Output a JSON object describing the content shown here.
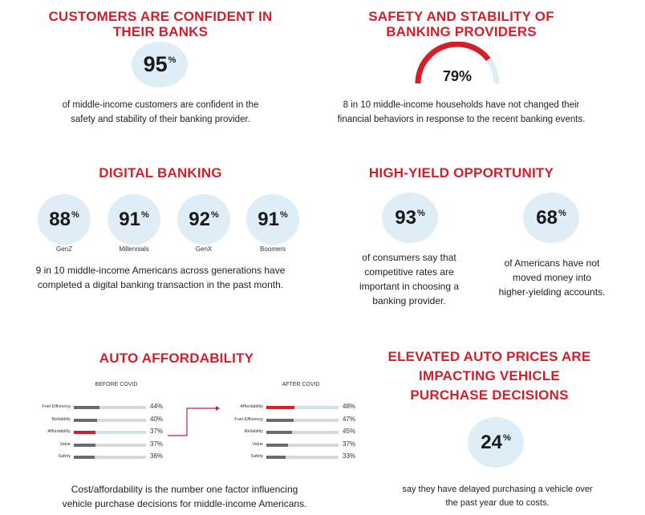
{
  "confidence": {
    "heading_line1": "CUSTOMERS ARE CONFIDENT IN",
    "heading_line2": "THEIR BANKS",
    "value": "95",
    "unit": "%",
    "text_line1": "of middle-income customers are confident in the",
    "text_line2": "safety and stability of their banking provider."
  },
  "safety": {
    "heading_line1": "SAFETY AND STABILITY OF",
    "heading_line2": "BANKING PROVIDERS",
    "gauge_value": 79,
    "gauge_label": "79%",
    "gauge_color": "#d31f2a",
    "gauge_track_color": "#deedf6",
    "text_line1": "8 in 10 middle-income households have not changed their",
    "text_line2": "financial behaviors in response to the recent banking events."
  },
  "digital": {
    "heading": "DIGITAL BANKING",
    "generations": [
      {
        "value": "88",
        "unit": "%",
        "label": "GenZ"
      },
      {
        "value": "91",
        "unit": "%",
        "label": "Millennials"
      },
      {
        "value": "92",
        "unit": "%",
        "label": "GenX"
      },
      {
        "value": "91",
        "unit": "%",
        "label": "Boomers"
      }
    ],
    "text_line1": "9 in 10 middle-income Americans across generations have",
    "text_line2": "completed a digital banking transaction in the past month."
  },
  "high_yield": {
    "heading": "HIGH-YIELD OPPORTUNITY",
    "stats": [
      {
        "value": "93",
        "unit": "%",
        "lines": [
          "of consumers say that",
          "competitive rates are",
          "important in choosing a",
          "banking provider."
        ]
      },
      {
        "value": "68",
        "unit": "%",
        "lines": [
          "of Americans have not",
          "moved money into",
          "higher-yielding accounts."
        ]
      }
    ]
  },
  "auto_affordability": {
    "heading": "AUTO AFFORDABILITY",
    "text_line1": "Cost/affordability is the number one factor influencing",
    "text_line2": "vehicle purchase decisions for middle-income Americans."
  },
  "chart_data": [
    {
      "type": "bar",
      "orientation": "horizontal",
      "title": "BEFORE COVID",
      "categories": [
        "Fuel Efficiency",
        "Reliability",
        "Affordability",
        "Value",
        "Safety"
      ],
      "values": [
        44,
        40,
        37,
        37,
        36
      ],
      "value_labels": [
        "44%",
        "40%",
        "37%",
        "37%",
        "36%"
      ],
      "highlight": "Affordability",
      "highlight_color": "#d31f2a",
      "bar_color": "#6b6b6b",
      "xlim": [
        0,
        100
      ]
    },
    {
      "type": "bar",
      "orientation": "horizontal",
      "title": "AFTER COVID",
      "categories": [
        "Affordability",
        "Fuel Efficiency",
        "Reliability",
        "Value",
        "Safety"
      ],
      "values": [
        48,
        47,
        45,
        37,
        33
      ],
      "value_labels": [
        "48%",
        "47%",
        "45%",
        "37%",
        "33%"
      ],
      "highlight": "Affordability",
      "highlight_color": "#d31f2a",
      "bar_color": "#6b6b6b",
      "xlim": [
        0,
        100
      ]
    }
  ],
  "auto_prices": {
    "heading_line1": "ELEVATED AUTO PRICES ARE",
    "heading_line2": "IMPACTING VEHICLE",
    "heading_line3": "PURCHASE DECISIONS",
    "value": "24",
    "unit": "%",
    "text_line1": "say they have delayed purchasing a vehicle over",
    "text_line2": "the past year due to costs."
  }
}
